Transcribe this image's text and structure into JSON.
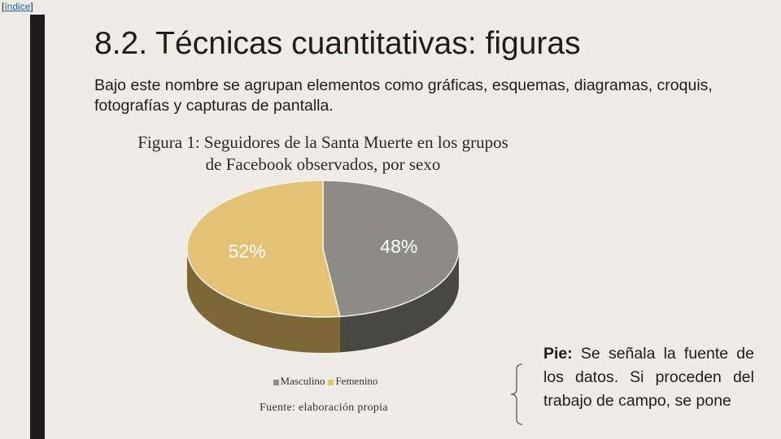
{
  "nav": {
    "index_prefix": "[",
    "index_label": "índice",
    "index_suffix": "]"
  },
  "slide": {
    "title": "8.2. Técnicas cuantitativas: figuras",
    "subtitle": "Bajo este nombre se agrupan elementos como gráficas, esquemas, diagramas, croquis, fotografías y capturas de pantalla."
  },
  "figure": {
    "caption": "Figura 1: Seguidores de la Santa Muerte en los grupos de Facebook observados, por sexo",
    "source": "Fuente: elaboración propia"
  },
  "chart_data": {
    "type": "pie",
    "style": "3d",
    "title": "Figura 1: Seguidores de la Santa Muerte en los grupos de Facebook observados, por sexo",
    "categories": [
      "Masculino",
      "Femenino"
    ],
    "values": [
      48,
      52
    ],
    "labels": [
      "48%",
      "52%"
    ],
    "colors": [
      "#8c8c85",
      "#e3c275"
    ],
    "side_colors": [
      "#484842",
      "#7d6736"
    ],
    "legend_position": "bottom"
  },
  "note": {
    "label": "Pie:",
    "text": " Se señala la fuente de los datos. Si proceden del trabajo de campo, se pone"
  }
}
